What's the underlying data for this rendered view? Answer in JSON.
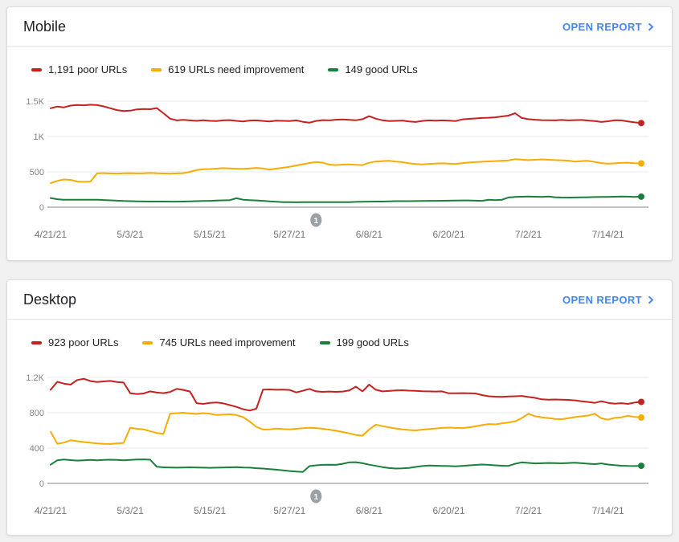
{
  "page": {
    "background_color": "#f0f0f0",
    "link_color": "#4285f4"
  },
  "cards": [
    {
      "title": "Mobile",
      "open_report_label": "OPEN REPORT"
    },
    {
      "title": "Desktop",
      "open_report_label": "OPEN REPORT"
    }
  ],
  "chart_data": [
    {
      "type": "line",
      "title": "Mobile",
      "legend_position": "top",
      "grid": true,
      "ylim": [
        0,
        1500
      ],
      "y_tick_labels": [
        "1.5K",
        "1K",
        "500",
        "0"
      ],
      "y_tick_values": [
        1500,
        1000,
        500,
        0
      ],
      "x_tick_labels": [
        "4/21/21",
        "5/3/21",
        "5/15/21",
        "5/27/21",
        "6/8/21",
        "6/20/21",
        "7/2/21",
        "7/14/21"
      ],
      "x_tick_indices": [
        0,
        12,
        24,
        36,
        48,
        60,
        72,
        84
      ],
      "annotation": {
        "label": "1",
        "index": 40
      },
      "series": [
        {
          "name": "1,191 poor URLs",
          "color": "#c5221f",
          "end_value": 1191,
          "values": [
            1400,
            1424,
            1412,
            1438,
            1447,
            1442,
            1450,
            1444,
            1426,
            1400,
            1374,
            1360,
            1366,
            1384,
            1390,
            1386,
            1402,
            1330,
            1252,
            1228,
            1236,
            1228,
            1222,
            1230,
            1222,
            1218,
            1228,
            1232,
            1222,
            1214,
            1226,
            1228,
            1220,
            1212,
            1224,
            1222,
            1218,
            1228,
            1208,
            1196,
            1220,
            1232,
            1228,
            1238,
            1242,
            1236,
            1230,
            1246,
            1288,
            1252,
            1230,
            1218,
            1222,
            1226,
            1212,
            1206,
            1220,
            1228,
            1224,
            1228,
            1224,
            1218,
            1242,
            1250,
            1256,
            1262,
            1266,
            1272,
            1284,
            1296,
            1330,
            1262,
            1246,
            1238,
            1232,
            1230,
            1228,
            1234,
            1228,
            1232,
            1234,
            1226,
            1218,
            1206,
            1216,
            1230,
            1228,
            1214,
            1200,
            1191
          ]
        },
        {
          "name": "619 URLs need improvement",
          "color": "#f9ab00",
          "end_value": 619,
          "values": [
            340,
            372,
            392,
            386,
            362,
            358,
            362,
            478,
            482,
            478,
            474,
            480,
            482,
            478,
            480,
            484,
            480,
            477,
            474,
            478,
            482,
            500,
            526,
            538,
            540,
            545,
            552,
            548,
            544,
            542,
            548,
            556,
            548,
            532,
            545,
            558,
            572,
            590,
            608,
            625,
            640,
            630,
            602,
            596,
            602,
            606,
            600,
            596,
            628,
            645,
            652,
            656,
            645,
            638,
            620,
            610,
            606,
            612,
            616,
            620,
            616,
            612,
            622,
            632,
            638,
            643,
            648,
            652,
            657,
            662,
            680,
            672,
            666,
            670,
            676,
            670,
            666,
            664,
            658,
            646,
            652,
            656,
            640,
            624,
            615,
            620,
            626,
            630,
            622,
            619
          ]
        },
        {
          "name": "149 good URLs",
          "color": "#188038",
          "end_value": 149,
          "values": [
            130,
            112,
            106,
            105,
            104,
            105,
            106,
            104,
            101,
            97,
            92,
            88,
            85,
            83,
            81,
            80,
            80,
            79,
            78,
            78,
            80,
            82,
            85,
            88,
            90,
            93,
            97,
            100,
            126,
            106,
            99,
            96,
            90,
            82,
            76,
            72,
            70,
            69,
            70,
            70,
            70,
            71,
            72,
            70,
            70,
            72,
            75,
            76,
            78,
            80,
            80,
            82,
            85,
            85,
            85,
            86,
            88,
            90,
            90,
            91,
            92,
            94,
            96,
            95,
            92,
            90,
            104,
            100,
            105,
            138,
            144,
            148,
            150,
            148,
            145,
            150,
            141,
            136,
            135,
            138,
            140,
            141,
            143,
            145,
            146,
            148,
            150,
            149,
            146,
            149
          ]
        }
      ]
    },
    {
      "type": "line",
      "title": "Desktop",
      "legend_position": "top",
      "grid": true,
      "ylim": [
        0,
        1200
      ],
      "y_tick_labels": [
        "1.2K",
        "800",
        "400",
        "0"
      ],
      "y_tick_values": [
        1200,
        800,
        400,
        0
      ],
      "x_tick_labels": [
        "4/21/21",
        "5/3/21",
        "5/15/21",
        "5/27/21",
        "6/8/21",
        "6/20/21",
        "7/2/21",
        "7/14/21"
      ],
      "x_tick_indices": [
        0,
        12,
        24,
        36,
        48,
        60,
        72,
        84
      ],
      "annotation": {
        "label": "1",
        "index": 40
      },
      "series": [
        {
          "name": "923 poor URLs",
          "color": "#c5221f",
          "end_value": 923,
          "values": [
            1060,
            1150,
            1130,
            1118,
            1170,
            1185,
            1158,
            1148,
            1155,
            1160,
            1148,
            1142,
            1020,
            1012,
            1018,
            1042,
            1028,
            1022,
            1035,
            1070,
            1058,
            1040,
            908,
            900,
            912,
            916,
            906,
            886,
            866,
            840,
            825,
            845,
            1062,
            1064,
            1060,
            1062,
            1058,
            1030,
            1048,
            1070,
            1042,
            1036,
            1040,
            1036,
            1040,
            1052,
            1095,
            1042,
            1118,
            1060,
            1042,
            1046,
            1052,
            1055,
            1050,
            1048,
            1044,
            1042,
            1040,
            1042,
            1020,
            1020,
            1022,
            1020,
            1018,
            1000,
            986,
            982,
            980,
            984,
            986,
            990,
            978,
            968,
            952,
            948,
            950,
            948,
            945,
            940,
            930,
            922,
            912,
            930,
            912,
            903,
            908,
            900,
            915,
            923
          ]
        },
        {
          "name": "745 URLs need improvement",
          "color": "#f9ab00",
          "end_value": 745,
          "values": [
            585,
            448,
            462,
            488,
            478,
            468,
            460,
            452,
            448,
            446,
            452,
            458,
            630,
            618,
            612,
            590,
            570,
            562,
            788,
            795,
            800,
            792,
            786,
            795,
            788,
            775,
            778,
            782,
            775,
            750,
            700,
            640,
            610,
            612,
            620,
            615,
            612,
            618,
            625,
            630,
            626,
            618,
            608,
            596,
            582,
            566,
            548,
            540,
            610,
            665,
            648,
            635,
            622,
            612,
            605,
            600,
            608,
            615,
            622,
            628,
            632,
            628,
            626,
            634,
            645,
            660,
            672,
            668,
            680,
            690,
            702,
            740,
            788,
            760,
            748,
            740,
            730,
            726,
            738,
            750,
            760,
            768,
            788,
            736,
            722,
            742,
            748,
            766,
            752,
            745
          ]
        },
        {
          "name": "199 good URLs",
          "color": "#188038",
          "end_value": 199,
          "values": [
            212,
            262,
            270,
            264,
            258,
            262,
            266,
            262,
            265,
            268,
            265,
            262,
            266,
            270,
            272,
            268,
            188,
            182,
            180,
            178,
            180,
            182,
            180,
            178,
            176,
            178,
            180,
            182,
            185,
            180,
            178,
            172,
            168,
            162,
            155,
            148,
            140,
            134,
            130,
            195,
            205,
            210,
            212,
            210,
            222,
            238,
            240,
            228,
            212,
            198,
            185,
            174,
            168,
            170,
            175,
            186,
            196,
            203,
            200,
            198,
            196,
            194,
            198,
            204,
            209,
            214,
            210,
            205,
            200,
            198,
            222,
            238,
            232,
            226,
            228,
            231,
            229,
            227,
            231,
            235,
            228,
            223,
            218,
            226,
            214,
            206,
            200,
            197,
            196,
            199
          ]
        }
      ]
    }
  ]
}
